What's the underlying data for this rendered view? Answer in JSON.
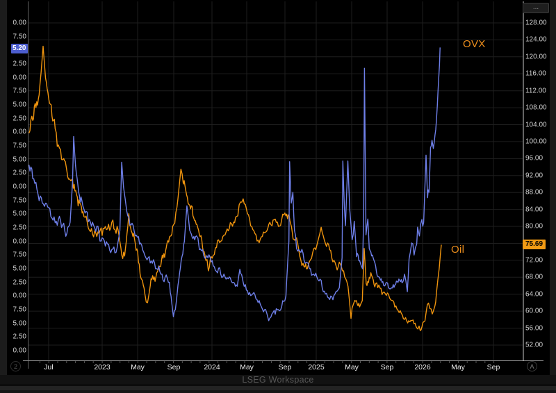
{
  "window": {
    "footer_brand": "LSEG Workspace",
    "corner_left_button": "2",
    "corner_right_button": "A",
    "top_right_menu": "..."
  },
  "chart_data": {
    "type": "line",
    "x_ticks": [
      "Jul",
      "2023",
      "May",
      "Sep",
      "2024",
      "May",
      "Sep",
      "2025",
      "May",
      "Sep",
      "2026",
      "May",
      "Sep"
    ],
    "left_axis": {
      "visible_labels": [
        "0.00",
        "7.50",
        "5.00",
        "2.50",
        "0.00",
        "7.50",
        "5.00",
        "2.50",
        "0.00",
        "7.50",
        "5.00",
        "2.50",
        "0.00",
        "7.50",
        "5.00",
        "2.50",
        "0.00",
        "7.50",
        "5.00",
        "2.50",
        "0.00",
        "7.50",
        "5.00",
        "2.50",
        "0.00"
      ],
      "current_value_tag": "5.20",
      "tag_color": "#4d5ecf"
    },
    "right_axis": {
      "min": 52,
      "max": 128,
      "step": 4,
      "current_value_tag": "75.69",
      "tag_color": "#f29b14"
    },
    "series": [
      {
        "name": "OVX",
        "axis": "left",
        "color": "#6e7fe8",
        "points": [
          2022.315,
          64,
          2022.35,
          61.5,
          2022.39,
          59.5,
          2022.43,
          58,
          2022.47,
          57,
          2022.51,
          56,
          2022.55,
          54.5,
          2022.59,
          54,
          2022.63,
          53,
          2022.67,
          51.5,
          2022.7,
          53.5,
          2022.723,
          61,
          2022.733,
          69.2,
          2022.75,
          64,
          2022.78,
          59,
          2022.81,
          57.5,
          2022.85,
          55.5,
          2022.89,
          53.5,
          2022.93,
          52.5,
          2022.97,
          51.5,
          2023.01,
          50.5,
          2023.05,
          49.5,
          2023.09,
          48.5,
          2023.13,
          48,
          2023.166,
          52,
          2023.183,
          64.5,
          2023.2,
          60,
          2023.23,
          55.5,
          2023.27,
          53,
          2023.31,
          51,
          2023.35,
          49.5,
          2023.39,
          48,
          2023.43,
          47,
          2023.47,
          46,
          2023.51,
          45,
          2023.55,
          44,
          2023.59,
          43.5,
          2023.63,
          42.5,
          2023.645,
          40,
          2023.667,
          36.2,
          2023.685,
          37.5,
          2023.71,
          42,
          2023.74,
          46.5,
          2023.77,
          50,
          2023.793,
          56.5,
          2023.82,
          52,
          2023.85,
          50.5,
          2023.883,
          51,
          2023.91,
          48.5,
          2023.95,
          47.5,
          2023.99,
          47,
          2024.03,
          46.5,
          2024.07,
          44.5,
          2024.11,
          44,
          2024.15,
          43.5,
          2024.19,
          43.5,
          2024.23,
          42.5,
          2024.265,
          41.8,
          2024.289,
          44.9,
          2024.32,
          42.5,
          2024.36,
          41,
          2024.4,
          40.2,
          2024.44,
          39.5,
          2024.48,
          38.5,
          2024.52,
          37.5,
          2024.559,
          35.5,
          2024.6,
          37,
          2024.64,
          37.5,
          2024.68,
          38,
          2024.72,
          40,
          2024.748,
          50,
          2024.755,
          64.6,
          2024.77,
          57,
          2024.785,
          59,
          2024.8,
          52,
          2024.82,
          48.7,
          2024.86,
          48,
          2024.9,
          46,
          2024.94,
          45,
          2024.98,
          44,
          2025.02,
          43,
          2025.06,
          41.5,
          2025.1,
          40.5,
          2025.14,
          40,
          2025.18,
          40.4,
          2025.22,
          41.5,
          2025.246,
          47,
          2025.253,
          64.7,
          2025.268,
          56,
          2025.278,
          52.9,
          2025.3,
          64.7,
          2025.318,
          55.8,
          2025.34,
          50.3,
          2025.36,
          53.7,
          2025.382,
          47.2,
          2025.41,
          46.5,
          2025.437,
          45,
          2025.448,
          55,
          2025.4555,
          81.7,
          2025.47,
          51.2,
          2025.487,
          54.1,
          2025.5,
          48.7,
          2025.53,
          47.5,
          2025.56,
          45.5,
          2025.59,
          43.5,
          2025.62,
          42.5,
          2025.65,
          42,
          2025.68,
          41.5,
          2025.71,
          41.5,
          2025.74,
          42,
          2025.77,
          42.5,
          2025.8,
          43,
          2025.83,
          44,
          2025.857,
          40.8,
          2025.873,
          46.8,
          2025.897,
          49.7,
          2025.92,
          47.5,
          2025.945,
          49.5,
          2025.953,
          52.6,
          2025.97,
          51,
          2025.993,
          54,
          2026.01,
          53.5,
          2026.032,
          65.8,
          2026.046,
          58,
          2026.06,
          59,
          2026.074,
          67.2,
          2026.088,
          68.5,
          2026.1,
          67,
          2026.116,
          69.5,
          2026.13,
          72.5,
          2026.144,
          77.4,
          2026.158,
          82.5,
          2026.163,
          85.5
        ],
        "noise_profile": [
          2022.3,
          1.4,
          2022.8,
          1.2,
          2023.2,
          1.1,
          2023.7,
          1.0,
          2024.2,
          0.9,
          2024.7,
          0.9,
          2025.2,
          0.9,
          2025.6,
          0.8,
          2026.0,
          1.0,
          2026.18,
          0.8
        ]
      },
      {
        "name": "Oil",
        "axis": "right",
        "color": "#ef940e",
        "points": [
          2022.315,
          102,
          2022.35,
          105,
          2022.38,
          108,
          2022.41,
          111,
          2022.447,
          122.5,
          2022.47,
          115,
          2022.5,
          110,
          2022.53,
          106,
          2022.56,
          103,
          2022.6,
          98.5,
          2022.64,
          96,
          2022.67,
          93,
          2022.7,
          91,
          2022.73,
          89,
          2022.76,
          87.5,
          2022.79,
          85.5,
          2022.82,
          83.5,
          2022.86,
          81,
          2022.9,
          79.5,
          2022.94,
          78.5,
          2022.98,
          79,
          2023.02,
          79.5,
          2023.06,
          80.5,
          2023.1,
          81.5,
          2023.14,
          80,
          2023.175,
          75,
          2023.21,
          73,
          2023.24,
          80,
          2023.25,
          83,
          2023.28,
          78.5,
          2023.31,
          76,
          2023.34,
          71.5,
          2023.37,
          67.5,
          2023.4,
          64,
          2023.425,
          62,
          2023.45,
          66,
          2023.48,
          67.5,
          2023.51,
          69,
          2023.54,
          70.5,
          2023.57,
          72.5,
          2023.6,
          75,
          2023.63,
          77.5,
          2023.66,
          80,
          2023.7,
          84.5,
          2023.737,
          93.5,
          2023.76,
          90,
          2023.79,
          87.5,
          2023.82,
          85,
          2023.85,
          82.5,
          2023.88,
          80.5,
          2023.91,
          78,
          2023.94,
          75,
          2023.97,
          72,
          2023.994,
          69.5,
          2024.03,
          72.5,
          2024.07,
          75,
          2024.11,
          76.5,
          2024.15,
          78,
          2024.19,
          79.5,
          2024.23,
          81,
          2024.27,
          82.5,
          2024.32,
          86.5,
          2024.36,
          83,
          2024.4,
          80,
          2024.44,
          78,
          2024.48,
          77,
          2024.52,
          78.5,
          2024.56,
          80.5,
          2024.6,
          81.5,
          2024.64,
          81,
          2024.68,
          81.5,
          2024.72,
          82.5,
          2024.75,
          82.5,
          2024.78,
          78.5,
          2024.81,
          77,
          2024.85,
          73,
          2024.89,
          70.5,
          2024.92,
          70,
          2024.96,
          72.5,
          2025.0,
          74.5,
          2025.05,
          79.8,
          2025.09,
          76,
          2025.13,
          74.5,
          2025.17,
          72,
          2025.21,
          70.5,
          2025.25,
          69.5,
          2025.29,
          67,
          2025.313,
          63,
          2025.329,
          58.3,
          2025.35,
          61.5,
          2025.38,
          62.5,
          2025.41,
          61,
          2025.435,
          62.5,
          2025.453,
          74.8,
          2025.472,
          66.5,
          2025.5,
          68,
          2025.53,
          68,
          2025.56,
          66.5,
          2025.6,
          65.5,
          2025.64,
          64.5,
          2025.68,
          64,
          2025.72,
          62.5,
          2025.76,
          60.5,
          2025.8,
          59.5,
          2025.84,
          58.5,
          2025.88,
          57.5,
          2025.92,
          57,
          2025.956,
          55.8,
          2025.978,
          55.4,
          2026.01,
          57.5,
          2026.033,
          59.8,
          2026.055,
          61.9,
          2026.08,
          60.5,
          2026.1,
          60,
          2026.13,
          64.5,
          2026.155,
          70,
          2026.175,
          75.69
        ],
        "noise_profile": [
          2022.3,
          2.1,
          2022.8,
          1.8,
          2023.2,
          1.8,
          2023.7,
          1.5,
          2024.2,
          1.4,
          2024.7,
          1.3,
          2025.2,
          1.3,
          2025.6,
          1.1,
          2026.0,
          1.0,
          2026.18,
          1.1
        ]
      }
    ]
  }
}
